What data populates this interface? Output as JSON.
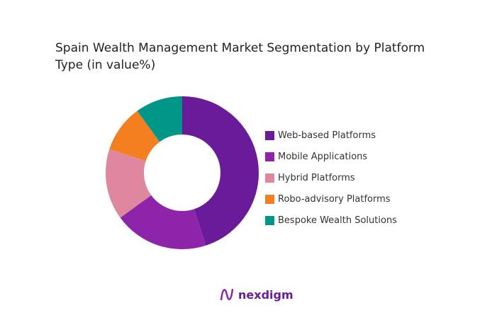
{
  "chart_data": {
    "type": "pie",
    "title": "Spain Wealth Management Market Segmentation by Platform Type (in value%)",
    "donut": true,
    "legend_position": "right",
    "categories": [
      "Web-based Platforms",
      "Mobile Applications",
      "Hybrid Platforms",
      "Robo-advisory Platforms",
      "Bespoke Wealth Solutions"
    ],
    "values": [
      45,
      20,
      15,
      10,
      10
    ],
    "colors": [
      "#6a1b9a",
      "#8e24aa",
      "#de879f",
      "#f47f20",
      "#009688"
    ]
  },
  "brand": {
    "name": "nexdigm"
  }
}
